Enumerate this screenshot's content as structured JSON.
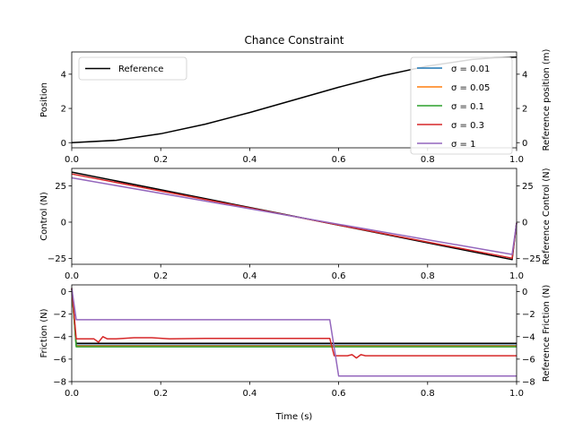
{
  "chart_data": {
    "title": "Chance Constraint",
    "xlabel": "Time (s)",
    "xlim": [
      0,
      1
    ],
    "xticks": [
      "0.0",
      "0.2",
      "0.4",
      "0.6",
      "0.8",
      "1.0"
    ],
    "colors": {
      "reference": "#000000",
      "sigma_001": "#1f77b4",
      "sigma_005": "#ff7f0e",
      "sigma_01": "#2ca02c",
      "sigma_03": "#d62728",
      "sigma_1": "#9467bd"
    },
    "legend": {
      "reference_label": "Reference",
      "sigma_labels": [
        "σ = 0.01",
        "σ = 0.05",
        "σ = 0.1",
        "σ = 0.3",
        "σ = 1"
      ]
    },
    "panels": [
      {
        "id": "position",
        "type": "line",
        "ylabel": "Position",
        "ylabel_right": "Reference position (m)",
        "ylim": [
          -0.3,
          5.3
        ],
        "yticks": [
          "0",
          "2",
          "4"
        ],
        "yticks_right": [
          "0",
          "2",
          "4"
        ],
        "note": "all series overlap; smooth rise",
        "series": [
          {
            "name": "Reference",
            "x": [
              0,
              0.1,
              0.2,
              0.3,
              0.4,
              0.5,
              0.6,
              0.7,
              0.8,
              0.9,
              0.95,
              1.0
            ],
            "y": [
              0,
              0.14,
              0.52,
              1.08,
              1.76,
              2.5,
              3.24,
              3.92,
              4.48,
              4.86,
              4.96,
              5.0
            ]
          }
        ]
      },
      {
        "id": "control",
        "type": "line",
        "ylabel": "Control (N)",
        "ylabel_right": "Reference Control (N)",
        "ylim": [
          -29,
          37
        ],
        "yticks": [
          "−25",
          "0",
          "25"
        ],
        "yticks_right": [
          "−25",
          "0",
          "25"
        ],
        "series": [
          {
            "name": "Reference",
            "x": [
              0,
              0.99,
              1.0
            ],
            "y": [
              34.5,
              -25.8,
              -0.5
            ]
          },
          {
            "name": "σ = 0.3",
            "x": [
              0,
              0.99,
              1.0
            ],
            "y": [
              33.2,
              -24.8,
              -0.5
            ]
          },
          {
            "name": "σ = 1",
            "x": [
              0,
              0.99,
              1.0
            ],
            "y": [
              30.5,
              -22.2,
              -0.5
            ]
          }
        ]
      },
      {
        "id": "friction",
        "type": "line",
        "ylabel": "Friction (N)",
        "ylabel_right": "Reference Friction (N)",
        "ylim": [
          -8,
          0.6
        ],
        "yticks": [
          "−8",
          "−6",
          "−4",
          "−2",
          "0"
        ],
        "yticks_right": [
          "−8",
          "−6",
          "−4",
          "−2",
          "0"
        ],
        "series": [
          {
            "name": "Reference",
            "x": [
              0,
              0.01,
              1.0
            ],
            "y": [
              0.3,
              -4.6,
              -4.6
            ]
          },
          {
            "name": "σ = 0.01",
            "x": [
              0,
              0.01,
              1.0
            ],
            "y": [
              0.3,
              -4.75,
              -4.75
            ]
          },
          {
            "name": "σ = 0.05",
            "x": [
              0,
              0.01,
              1.0
            ],
            "y": [
              0.3,
              -4.82,
              -4.82
            ]
          },
          {
            "name": "σ = 0.1",
            "x": [
              0,
              0.01,
              1.0
            ],
            "y": [
              0.3,
              -4.9,
              -4.9
            ]
          },
          {
            "name": "σ = 0.3",
            "x": [
              0,
              0.01,
              0.05,
              0.06,
              0.07,
              0.08,
              0.1,
              0.14,
              0.18,
              0.22,
              0.3,
              0.4,
              0.5,
              0.58,
              0.59,
              0.62,
              0.63,
              0.64,
              0.65,
              0.66,
              0.7,
              0.8,
              0.9,
              1.0
            ],
            "y": [
              0.3,
              -4.2,
              -4.2,
              -4.5,
              -4.0,
              -4.2,
              -4.2,
              -4.1,
              -4.1,
              -4.2,
              -4.15,
              -4.15,
              -4.15,
              -4.15,
              -5.7,
              -5.7,
              -5.6,
              -5.9,
              -5.6,
              -5.7,
              -5.7,
              -5.7,
              -5.7,
              -5.7
            ]
          },
          {
            "name": "σ = 1",
            "x": [
              0,
              0.01,
              0.1,
              0.2,
              0.3,
              0.4,
              0.5,
              0.58,
              0.6,
              0.7,
              0.8,
              0.9,
              1.0
            ],
            "y": [
              0.3,
              -2.5,
              -2.5,
              -2.5,
              -2.5,
              -2.5,
              -2.5,
              -2.5,
              -7.5,
              -7.5,
              -7.5,
              -7.5,
              -7.5
            ]
          }
        ]
      }
    ]
  }
}
